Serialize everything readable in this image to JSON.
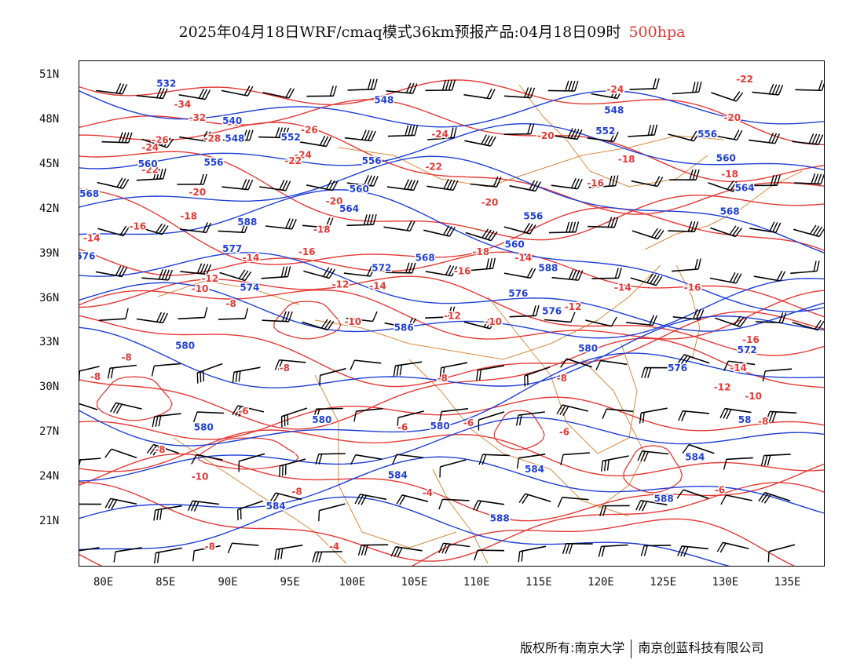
{
  "title": {
    "main": "2025年04月18日WRF/cmaq模式36km预报产品:04月18日09时",
    "level": "500hpa"
  },
  "axes": {
    "latitudes": [
      "51N",
      "48N",
      "45N",
      "42N",
      "39N",
      "36N",
      "33N",
      "30N",
      "27N",
      "24N",
      "21N"
    ],
    "longitudes": [
      "80E",
      "85E",
      "90E",
      "95E",
      "100E",
      "105E",
      "110E",
      "115E",
      "120E",
      "125E",
      "130E",
      "135E"
    ]
  },
  "colors": {
    "height_contour": "#1f3fd6",
    "temperature_contour": "#e53935",
    "boundaries": "#d98a3d",
    "wind_barb": "#000000"
  },
  "height_labels": [
    {
      "text": "532",
      "lon": 85,
      "lat": 50.5
    },
    {
      "text": "548",
      "lon": 102.5,
      "lat": 49.4
    },
    {
      "text": "548",
      "lon": 121,
      "lat": 48.7
    },
    {
      "text": "540",
      "lon": 90.3,
      "lat": 48
    },
    {
      "text": "548",
      "lon": 90.5,
      "lat": 46.8
    },
    {
      "text": "552",
      "lon": 95,
      "lat": 46.9
    },
    {
      "text": "552",
      "lon": 120.3,
      "lat": 47.3
    },
    {
      "text": "556",
      "lon": 128.5,
      "lat": 47.1
    },
    {
      "text": "560",
      "lon": 83.5,
      "lat": 45.1
    },
    {
      "text": "556",
      "lon": 88.8,
      "lat": 45.2
    },
    {
      "text": "556",
      "lon": 101.5,
      "lat": 45.3
    },
    {
      "text": "560",
      "lon": 130,
      "lat": 45.5
    },
    {
      "text": "560",
      "lon": 100.5,
      "lat": 43.4
    },
    {
      "text": "564",
      "lon": 131.5,
      "lat": 43.5
    },
    {
      "text": "568",
      "lon": 78.8,
      "lat": 43.1
    },
    {
      "text": "564",
      "lon": 99.7,
      "lat": 42.1
    },
    {
      "text": "568",
      "lon": 130.3,
      "lat": 41.9
    },
    {
      "text": "588",
      "lon": 91.5,
      "lat": 41.2
    },
    {
      "text": "556",
      "lon": 114.5,
      "lat": 41.6
    },
    {
      "text": "560",
      "lon": 113,
      "lat": 39.7
    },
    {
      "text": "577",
      "lon": 90.3,
      "lat": 39.4
    },
    {
      "text": "576",
      "lon": 78.5,
      "lat": 38.9
    },
    {
      "text": "568",
      "lon": 105.8,
      "lat": 38.8
    },
    {
      "text": "572",
      "lon": 102.3,
      "lat": 38.1
    },
    {
      "text": "588",
      "lon": 115.7,
      "lat": 38.1
    },
    {
      "text": "574",
      "lon": 91.7,
      "lat": 36.8
    },
    {
      "text": "576",
      "lon": 113.3,
      "lat": 36.4
    },
    {
      "text": "576",
      "lon": 116,
      "lat": 35.2
    },
    {
      "text": "586",
      "lon": 104.1,
      "lat": 34.1
    },
    {
      "text": "580",
      "lon": 86.5,
      "lat": 32.9
    },
    {
      "text": "580",
      "lon": 118.9,
      "lat": 32.7
    },
    {
      "text": "572",
      "lon": 131.7,
      "lat": 32.6
    },
    {
      "text": "576",
      "lon": 126.1,
      "lat": 31.4
    },
    {
      "text": "580",
      "lon": 88,
      "lat": 27.4
    },
    {
      "text": "580",
      "lon": 97.5,
      "lat": 27.9
    },
    {
      "text": "580",
      "lon": 107,
      "lat": 27.5
    },
    {
      "text": "58",
      "lon": 131.5,
      "lat": 27.9
    },
    {
      "text": "584",
      "lon": 127.5,
      "lat": 25.4
    },
    {
      "text": "584",
      "lon": 103.6,
      "lat": 24.2
    },
    {
      "text": "584",
      "lon": 114.6,
      "lat": 24.6
    },
    {
      "text": "588",
      "lon": 125,
      "lat": 22.6
    },
    {
      "text": "584",
      "lon": 93.8,
      "lat": 22.1
    },
    {
      "text": "588",
      "lon": 111.8,
      "lat": 21.3
    }
  ],
  "temperature_labels": [
    {
      "text": "-34",
      "lon": 86.3,
      "lat": 49.1
    },
    {
      "text": "-32",
      "lon": 87.5,
      "lat": 48.2
    },
    {
      "text": "-26",
      "lon": 84.5,
      "lat": 46.7
    },
    {
      "text": "-24",
      "lon": 83.7,
      "lat": 46.2
    },
    {
      "text": "-28",
      "lon": 88.7,
      "lat": 46.8
    },
    {
      "text": "-26",
      "lon": 96.5,
      "lat": 47.4
    },
    {
      "text": "-24",
      "lon": 107,
      "lat": 47.1
    },
    {
      "text": "-24",
      "lon": 121.1,
      "lat": 50.1
    },
    {
      "text": "-22",
      "lon": 131.5,
      "lat": 50.8
    },
    {
      "text": "-20",
      "lon": 130.5,
      "lat": 48.2
    },
    {
      "text": "-20",
      "lon": 115.5,
      "lat": 47
    },
    {
      "text": "-24",
      "lon": 96,
      "lat": 45.7
    },
    {
      "text": "-22",
      "lon": 95.2,
      "lat": 45.3
    },
    {
      "text": "-22",
      "lon": 106.5,
      "lat": 44.9
    },
    {
      "text": "-18",
      "lon": 122,
      "lat": 45.4
    },
    {
      "text": "-18",
      "lon": 130.3,
      "lat": 44.4
    },
    {
      "text": "-22",
      "lon": 83.7,
      "lat": 44.7
    },
    {
      "text": "-20",
      "lon": 87.5,
      "lat": 43.2
    },
    {
      "text": "-20",
      "lon": 98.5,
      "lat": 42.6
    },
    {
      "text": "-20",
      "lon": 111,
      "lat": 42.5
    },
    {
      "text": "-16",
      "lon": 119.5,
      "lat": 43.8
    },
    {
      "text": "-18",
      "lon": 86.8,
      "lat": 41.6
    },
    {
      "text": "-16",
      "lon": 82.7,
      "lat": 40.9
    },
    {
      "text": "-18",
      "lon": 97.5,
      "lat": 40.7
    },
    {
      "text": "-14",
      "lon": 79,
      "lat": 40.1
    },
    {
      "text": "-16",
      "lon": 96.3,
      "lat": 39.2
    },
    {
      "text": "-18",
      "lon": 110.3,
      "lat": 39.2
    },
    {
      "text": "-14",
      "lon": 91.8,
      "lat": 38.8
    },
    {
      "text": "-14",
      "lon": 113.7,
      "lat": 38.8
    },
    {
      "text": "-16",
      "lon": 108.8,
      "lat": 37.9
    },
    {
      "text": "-12",
      "lon": 88.5,
      "lat": 37.4
    },
    {
      "text": "-10",
      "lon": 87.7,
      "lat": 36.7
    },
    {
      "text": "-12",
      "lon": 99,
      "lat": 37
    },
    {
      "text": "-14",
      "lon": 102,
      "lat": 36.9
    },
    {
      "text": "-14",
      "lon": 121.7,
      "lat": 36.8
    },
    {
      "text": "-16",
      "lon": 127.3,
      "lat": 36.8
    },
    {
      "text": "-8",
      "lon": 90.2,
      "lat": 35.7
    },
    {
      "text": "-12",
      "lon": 117.7,
      "lat": 35.5
    },
    {
      "text": "-12",
      "lon": 108,
      "lat": 34.9
    },
    {
      "text": "-10",
      "lon": 100,
      "lat": 34.5
    },
    {
      "text": "-10",
      "lon": 111.3,
      "lat": 34.5
    },
    {
      "text": "-16",
      "lon": 132,
      "lat": 33.3
    },
    {
      "text": "-8",
      "lon": 81.8,
      "lat": 32.1
    },
    {
      "text": "-8",
      "lon": 94.5,
      "lat": 31.4
    },
    {
      "text": "-14",
      "lon": 131,
      "lat": 31.4
    },
    {
      "text": "-8",
      "lon": 79.3,
      "lat": 30.8
    },
    {
      "text": "-8",
      "lon": 107.2,
      "lat": 30.7
    },
    {
      "text": "-8",
      "lon": 116.8,
      "lat": 30.7
    },
    {
      "text": "-12",
      "lon": 129.7,
      "lat": 30.1
    },
    {
      "text": "-10",
      "lon": 132.2,
      "lat": 29.5
    },
    {
      "text": "-6",
      "lon": 91.2,
      "lat": 28.5
    },
    {
      "text": "-6",
      "lon": 104,
      "lat": 27.4
    },
    {
      "text": "-6",
      "lon": 109.3,
      "lat": 27.7
    },
    {
      "text": "-6",
      "lon": 117,
      "lat": 27.1
    },
    {
      "text": "-8",
      "lon": 133,
      "lat": 27.8
    },
    {
      "text": "-8",
      "lon": 84.5,
      "lat": 25.9
    },
    {
      "text": "-10",
      "lon": 87.7,
      "lat": 24.1
    },
    {
      "text": "-8",
      "lon": 95.5,
      "lat": 23.1
    },
    {
      "text": "-4",
      "lon": 106,
      "lat": 23
    },
    {
      "text": "-6",
      "lon": 129.5,
      "lat": 23.2
    },
    {
      "text": "-8",
      "lon": 88.5,
      "lat": 19.4
    },
    {
      "text": "-4",
      "lon": 98.5,
      "lat": 19.4
    }
  ],
  "credit": {
    "left": "版权所有:南京大学",
    "right": "南京创蓝科技有限公司"
  }
}
